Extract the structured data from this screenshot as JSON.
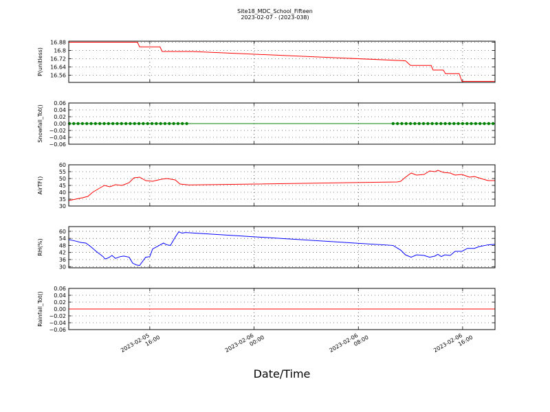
{
  "title": "Site18_MDC_School_Fifteen",
  "subtitle": "2023-02-07 - (2023-038)",
  "x_label": "Date/Time",
  "chart_data": [
    {
      "type": "line",
      "y_label": "P(unitless)",
      "color": "#ff0000",
      "grid": true,
      "xlim": [
        "2023-02-05 09:47",
        "2023-02-06 18:29"
      ],
      "xticks": [
        "2023-02-05 16:00",
        "2023-02-06 00:00",
        "2023-02-06 08:00",
        "2023-02-06 16:00"
      ],
      "ylim": [
        16.49,
        16.89
      ],
      "yticks": [
        16.56,
        16.64,
        16.72,
        16.8,
        16.88
      ],
      "x": [
        "2023-02-05 09:47",
        "2023-02-05 15:03",
        "2023-02-05 15:13",
        "2023-02-05 16:47",
        "2023-02-05 16:57",
        "2023-02-05 19:16",
        "2023-02-06 11:37",
        "2023-02-06 12:00",
        "2023-02-06 13:35",
        "2023-02-06 13:44",
        "2023-02-06 14:31",
        "2023-02-06 14:41",
        "2023-02-06 15:44",
        "2023-02-06 15:57",
        "2023-02-06 18:29"
      ],
      "values": [
        16.88,
        16.88,
        16.835,
        16.835,
        16.79,
        16.79,
        16.7,
        16.655,
        16.655,
        16.61,
        16.61,
        16.575,
        16.575,
        16.5,
        16.5
      ]
    },
    {
      "type": "line",
      "y_label": "Snowfall_Tot()",
      "color": "#008000",
      "markers": true,
      "grid": true,
      "xlim": [
        "2023-02-05 09:47",
        "2023-02-06 18:29"
      ],
      "xticks": [
        "2023-02-05 16:00",
        "2023-02-06 00:00",
        "2023-02-06 08:00",
        "2023-02-06 16:00"
      ],
      "ylim": [
        -0.06,
        0.06
      ],
      "yticks": [
        {
          "value": -0.06,
          "label": "−0.06"
        },
        {
          "value": -0.04,
          "label": "−0.04"
        },
        {
          "value": -0.02,
          "label": "−0.02"
        },
        {
          "value": 0,
          "label": "0.00"
        },
        0.02,
        0.04,
        0.06
      ],
      "x": [
        "2023-02-05 09:50",
        "2023-02-05 10:10",
        "2023-02-05 10:30",
        "2023-02-05 10:50",
        "2023-02-05 11:10",
        "2023-02-05 11:30",
        "2023-02-05 11:50",
        "2023-02-05 12:10",
        "2023-02-05 12:30",
        "2023-02-05 12:50",
        "2023-02-05 13:10",
        "2023-02-05 13:30",
        "2023-02-05 13:50",
        "2023-02-05 14:10",
        "2023-02-05 14:30",
        "2023-02-05 14:50",
        "2023-02-05 15:10",
        "2023-02-05 15:30",
        "2023-02-05 15:50",
        "2023-02-05 16:10",
        "2023-02-05 16:30",
        "2023-02-05 16:50",
        "2023-02-05 17:10",
        "2023-02-05 17:30",
        "2023-02-05 17:50",
        "2023-02-05 18:10",
        "2023-02-05 18:30",
        "2023-02-05 18:50",
        "2023-02-06 10:40",
        "2023-02-06 11:00",
        "2023-02-06 11:20",
        "2023-02-06 11:40",
        "2023-02-06 12:00",
        "2023-02-06 12:20",
        "2023-02-06 12:40",
        "2023-02-06 13:00",
        "2023-02-06 13:20",
        "2023-02-06 13:40",
        "2023-02-06 14:00",
        "2023-02-06 14:20",
        "2023-02-06 14:40",
        "2023-02-06 15:00",
        "2023-02-06 15:20",
        "2023-02-06 15:40",
        "2023-02-06 16:00",
        "2023-02-06 16:20",
        "2023-02-06 16:40",
        "2023-02-06 17:00",
        "2023-02-06 17:20",
        "2023-02-06 17:40",
        "2023-02-06 18:00",
        "2023-02-06 18:20"
      ],
      "values": [
        0,
        0,
        0,
        0,
        0,
        0,
        0,
        0,
        0,
        0,
        0,
        0,
        0,
        0,
        0,
        0,
        0,
        0,
        0,
        0,
        0,
        0,
        0,
        0,
        0,
        0,
        0,
        0,
        0,
        0,
        0,
        0,
        0,
        0,
        0,
        0,
        0,
        0,
        0,
        0,
        0,
        0,
        0,
        0,
        0,
        0,
        0,
        0,
        0,
        0,
        0,
        0
      ]
    },
    {
      "type": "line",
      "y_label": "AirTF()",
      "color": "#ff0000",
      "grid": true,
      "xlim": [
        "2023-02-05 09:47",
        "2023-02-06 18:29"
      ],
      "xticks": [
        "2023-02-05 16:00",
        "2023-02-06 00:00",
        "2023-02-06 08:00",
        "2023-02-06 16:00"
      ],
      "ylim": [
        30,
        60
      ],
      "yticks": [
        30,
        35,
        40,
        45,
        50,
        55,
        60
      ],
      "x": [
        "2023-02-05 09:47",
        "2023-02-05 10:50",
        "2023-02-05 11:15",
        "2023-02-05 11:37",
        "2023-02-05 12:09",
        "2023-02-05 12:31",
        "2023-02-05 12:56",
        "2023-02-05 13:22",
        "2023-02-05 13:53",
        "2023-02-05 14:25",
        "2023-02-05 14:47",
        "2023-02-05 15:13",
        "2023-02-05 15:41",
        "2023-02-05 16:13",
        "2023-02-05 16:54",
        "2023-02-05 17:19",
        "2023-02-05 17:57",
        "2023-02-05 18:19",
        "2023-02-05 19:00",
        "2023-02-06 10:59",
        "2023-02-06 11:15",
        "2023-02-06 11:37",
        "2023-02-06 12:03",
        "2023-02-06 12:28",
        "2023-02-06 13:03",
        "2023-02-06 13:28",
        "2023-02-06 13:53",
        "2023-02-06 14:06",
        "2023-02-06 14:31",
        "2023-02-06 15:03",
        "2023-02-06 15:25",
        "2023-02-06 15:57",
        "2023-02-06 16:32",
        "2023-02-06 16:54",
        "2023-02-06 17:35",
        "2023-02-06 17:57",
        "2023-02-06 18:29"
      ],
      "values": [
        34,
        36,
        37,
        40,
        43,
        45,
        44,
        45.5,
        45,
        47,
        50.5,
        51,
        48.5,
        48,
        49.5,
        50,
        49,
        46,
        45.3,
        47.5,
        48,
        51,
        54,
        52.5,
        53,
        55.5,
        55,
        56,
        54.5,
        54,
        52.5,
        53,
        51,
        51.5,
        49.5,
        48.5,
        48.5
      ]
    },
    {
      "type": "line",
      "y_label": "RH(%)",
      "color": "#0000ff",
      "grid": true,
      "xlim": [
        "2023-02-05 09:47",
        "2023-02-06 18:29"
      ],
      "xticks": [
        "2023-02-05 16:00",
        "2023-02-06 00:00",
        "2023-02-06 08:00",
        "2023-02-06 16:00"
      ],
      "ylim": [
        29,
        64
      ],
      "yticks": [
        30,
        36,
        42,
        48,
        54,
        60
      ],
      "x": [
        "2023-02-05 09:47",
        "2023-02-05 10:12",
        "2023-02-05 10:43",
        "2023-02-05 11:06",
        "2023-02-05 11:28",
        "2023-02-05 11:53",
        "2023-02-05 12:25",
        "2023-02-05 12:34",
        "2023-02-05 12:50",
        "2023-02-05 13:06",
        "2023-02-05 13:22",
        "2023-02-05 13:44",
        "2023-02-05 14:00",
        "2023-02-05 14:25",
        "2023-02-05 14:41",
        "2023-02-05 14:57",
        "2023-02-05 15:13",
        "2023-02-05 15:41",
        "2023-02-05 16:00",
        "2023-02-05 16:13",
        "2023-02-05 16:38",
        "2023-02-05 17:03",
        "2023-02-05 17:19",
        "2023-02-05 17:35",
        "2023-02-05 17:57",
        "2023-02-05 18:13",
        "2023-02-05 18:29",
        "2023-02-05 18:45",
        "2023-02-06 10:40",
        "2023-02-06 11:15",
        "2023-02-06 11:37",
        "2023-02-06 12:03",
        "2023-02-06 12:28",
        "2023-02-06 13:03",
        "2023-02-06 13:28",
        "2023-02-06 13:53",
        "2023-02-06 14:06",
        "2023-02-06 14:22",
        "2023-02-06 14:38",
        "2023-02-06 15:03",
        "2023-02-06 15:25",
        "2023-02-06 15:57",
        "2023-02-06 16:22",
        "2023-02-06 16:54",
        "2023-02-06 17:16",
        "2023-02-06 17:57",
        "2023-02-06 18:29"
      ],
      "values": [
        53,
        52,
        50.5,
        50,
        47,
        43,
        38.5,
        36.5,
        37.5,
        39.5,
        37,
        38.5,
        39,
        38,
        33,
        31.5,
        31,
        38,
        38.5,
        45,
        47.5,
        50,
        48.5,
        48,
        55,
        59.5,
        58.5,
        59,
        48,
        44,
        40,
        38,
        40,
        39.5,
        38,
        39,
        40.5,
        38.5,
        40,
        39.5,
        43,
        43,
        45.5,
        45.5,
        47,
        48.5,
        49
      ]
    },
    {
      "type": "line",
      "y_label": "Rainfall_Tot()",
      "color": "#ff0000",
      "grid": true,
      "xlim": [
        "2023-02-05 09:47",
        "2023-02-06 18:29"
      ],
      "xticks": [
        {
          "value": "2023-02-05 16:00",
          "label": "2023-02-05\n16:00"
        },
        {
          "value": "2023-02-06 00:00",
          "label": "2023-02-06\n00:00"
        },
        {
          "value": "2023-02-06 08:00",
          "label": "2023-02-06\n08:00"
        },
        {
          "value": "2023-02-06 16:00",
          "label": "2023-02-06\n16:00"
        }
      ],
      "ylim": [
        -0.06,
        0.06
      ],
      "yticks": [
        {
          "value": -0.06,
          "label": "−0.06"
        },
        {
          "value": -0.04,
          "label": "−0.04"
        },
        {
          "value": -0.02,
          "label": "−0.02"
        },
        {
          "value": 0,
          "label": "0.00"
        },
        0.02,
        0.04,
        0.06
      ],
      "x": [
        "2023-02-05 09:47",
        "2023-02-06 18:29"
      ],
      "values": [
        0,
        0
      ]
    }
  ]
}
